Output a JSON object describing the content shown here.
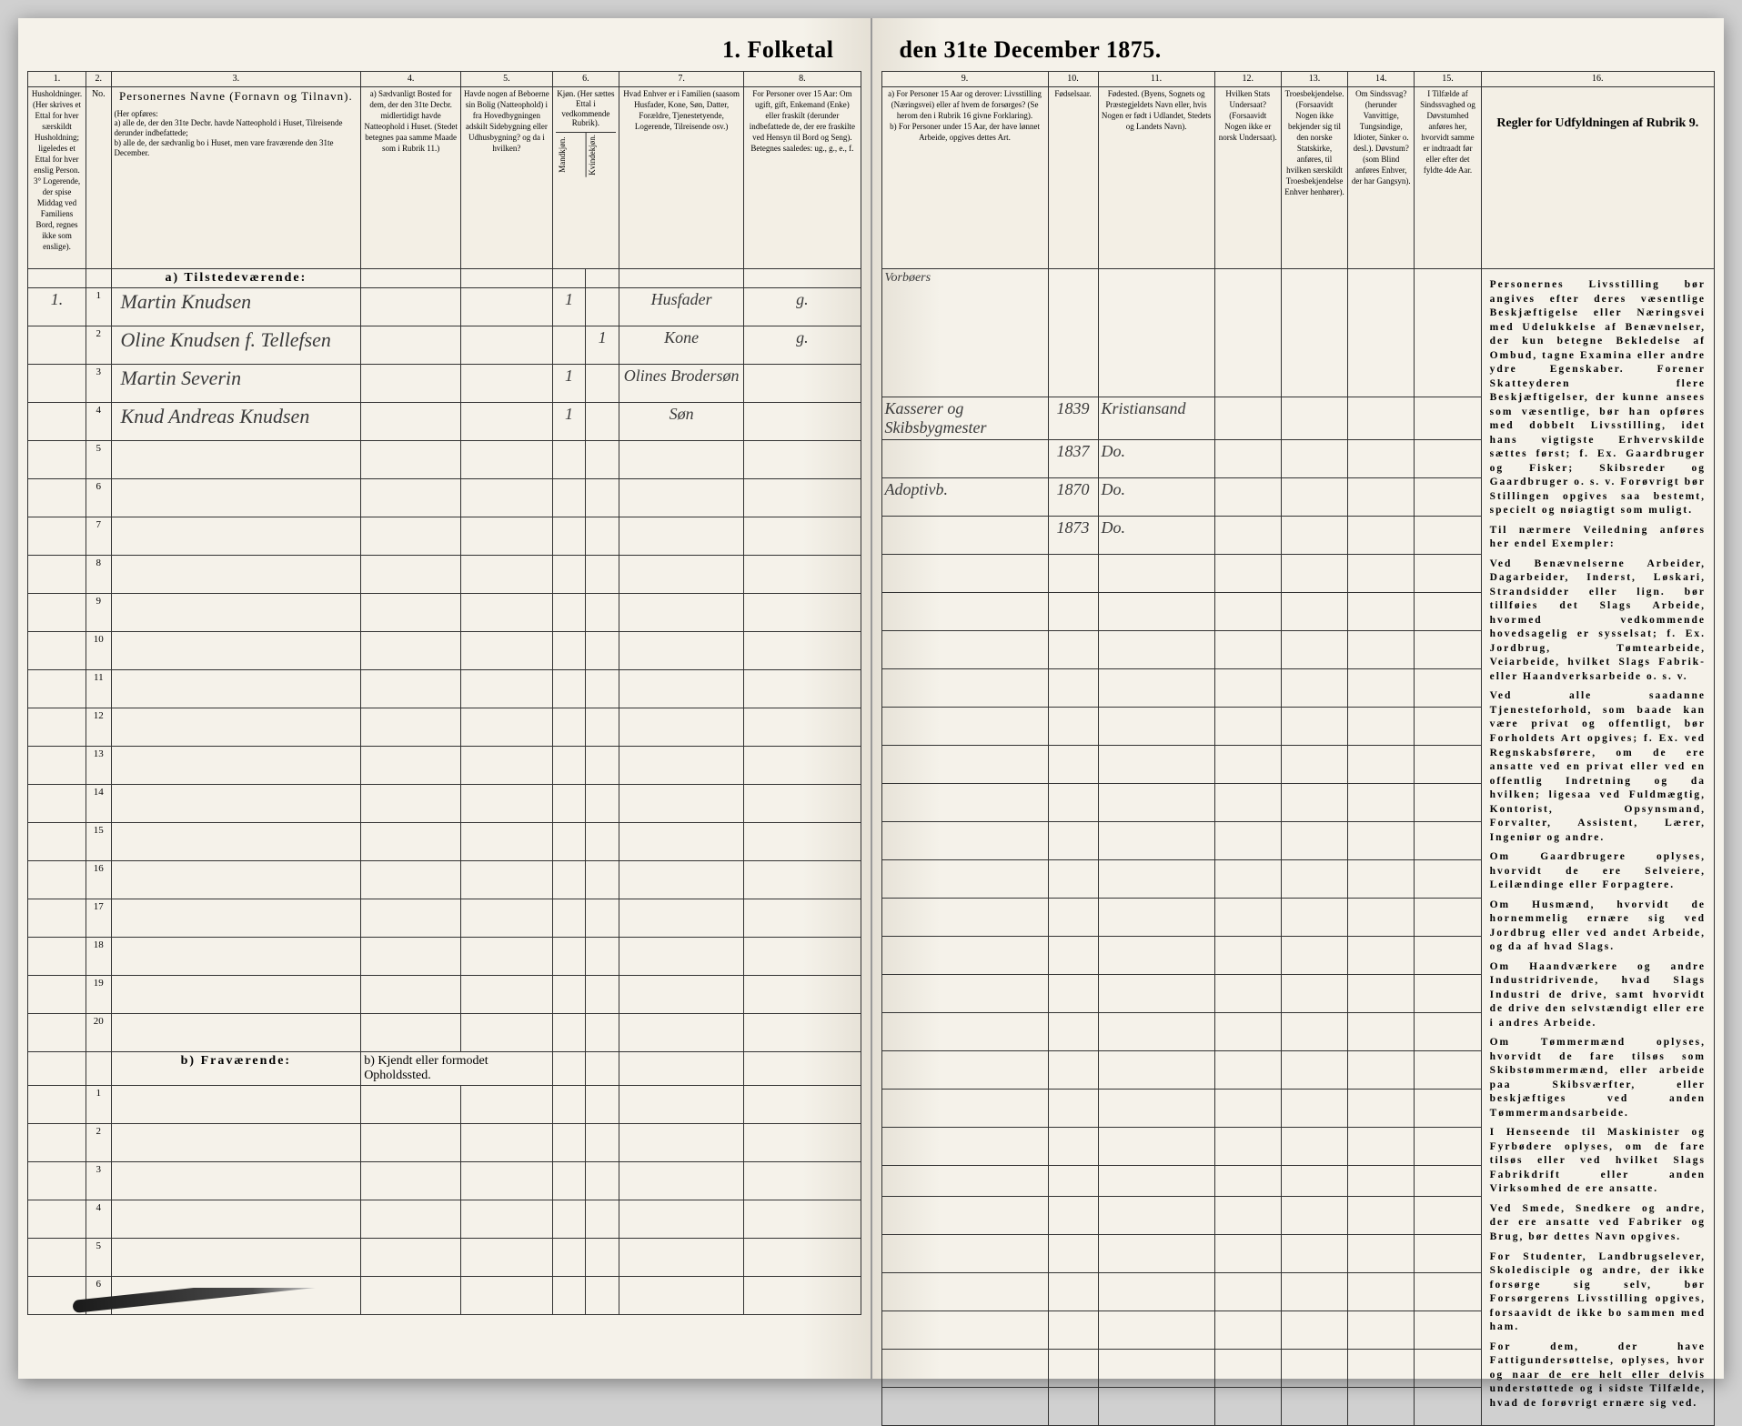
{
  "title_left": "1. Folketal",
  "title_right": "den 31te December 1875.",
  "column_numbers": [
    "1.",
    "2.",
    "3.",
    "4.",
    "5.",
    "6.",
    "7.",
    "8.",
    "9.",
    "10.",
    "11.",
    "12.",
    "13.",
    "14.",
    "15.",
    "16."
  ],
  "headers": {
    "c1": "Husholdninger. (Her skrives et Ettal for hver særskildt Husholdning; ligeledes et Ettal for hver enslig Person.\n3° Logerende, der spise Middag ved Familiens Bord, regnes ikke som enslige).",
    "c2": "No.",
    "c3_title": "Personernes Navne (Fornavn og Tilnavn).",
    "c3_body": "(Her opføres:\na) alle de, der den 31te Decbr. havde Natteophold i Huset, Tilreisende derunder indbefattede;\nb) alle de, der sædvanlig bo i Huset, men vare fraværende den 31te December.",
    "c4": "a) Sædvanligt Bosted for dem, der den 31te Decbr. midlertidigt havde Natteophold i Huset. (Stedet betegnes paa samme Maade som i Rubrik 11.)",
    "c5": "Havde nogen af Beboerne sin Bolig (Natteophold) i fra Hovedbygningen adskilt Sidebygning eller Udhusbygning? og da i hvilken?",
    "c6": "Kjøn. (Her sættes Ettal i vedkommende Rubrik).",
    "c6a": "Mandkjøn.",
    "c6b": "Kvindekjøn.",
    "c7": "Hvad Enhver er i Familien (saasom Husfader, Kone, Søn, Datter, Forældre, Tjenestetyende, Logerende, Tilreisende osv.)",
    "c8": "For Personer over 15 Aar: Om ugift, gift, Enkemand (Enke) eller fraskilt (derunder indbefattede de, der ere fraskilte ved Hensyn til Bord og Seng).\nBetegnes saaledes:\nug., g., e., f.",
    "c9": "a) For Personer 15 Aar og derover: Livsstilling (Næringsvei) eller af hvem de forsørges? (Se herom den i Rubrik 16 givne Forklaring).\nb) For Personer under 15 Aar, der have lønnet Arbeide, opgives dettes Art.",
    "c10": "Fødselsaar.",
    "c11": "Fødested. (Byens, Sognets og Præstegjeldets Navn eller, hvis Nogen er født i Udlandet, Stedets og Landets Navn).",
    "c12": "Hvilken Stats Undersaat? (Forsaavidt Nogen ikke er norsk Undersaat).",
    "c13": "Troesbekjendelse. (Forsaavidt Nogen ikke bekjender sig til den norske Statskirke, anføres, til hvilken særskildt Troesbekjendelse Enhver henhører).",
    "c14": "Om Sindssvag? (herunder Vanvittige, Tungsindige, Idioter, Sinker o. desl.).\nDøvstum? (som Blind anføres Enhver, der har Gangsyn).",
    "c15": "I Tilfælde af Sindssvaghed og Døvstumhed anføres her, hvorvidt samme er indtraadt før eller efter det fyldte 4de Aar.",
    "c16": "Regler for Udfyldningen af Rubrik 9."
  },
  "section_a": "a) Tilstedeværende:",
  "section_b": "b) Fraværende:",
  "section_b_col4": "b) Kjendt eller formodet Opholdssted.",
  "rows_a": [
    {
      "hh": "1.",
      "no": "1",
      "name": "Martin Knudsen",
      "c4": "",
      "c5": "",
      "m": "1",
      "k": "",
      "fam": "Husfader",
      "civ": "g.",
      "occ": "Kasserer og Skibsbygmester",
      "year": "1839",
      "place": "Kristiansand"
    },
    {
      "hh": "",
      "no": "2",
      "name": "Oline Knudsen f. Tellefsen",
      "c4": "",
      "c5": "",
      "m": "",
      "k": "1",
      "fam": "Kone",
      "civ": "g.",
      "occ": "",
      "year": "1837",
      "place": "Do."
    },
    {
      "hh": "",
      "no": "3",
      "name": "Martin Severin",
      "c4": "",
      "c5": "",
      "m": "1",
      "k": "",
      "fam": "Olines Brodersøn",
      "civ": "",
      "occ": "Adoptivb.",
      "year": "1870",
      "place": "Do."
    },
    {
      "hh": "",
      "no": "4",
      "name": "Knud Andreas Knudsen",
      "c4": "",
      "c5": "",
      "m": "1",
      "k": "",
      "fam": "Søn",
      "civ": "",
      "occ": "",
      "year": "1873",
      "place": "Do."
    }
  ],
  "row_nums_a": [
    "1",
    "2",
    "3",
    "4",
    "5",
    "6",
    "7",
    "8",
    "9",
    "10",
    "11",
    "12",
    "13",
    "14",
    "15",
    "16",
    "17",
    "18",
    "19",
    "20"
  ],
  "row_nums_b": [
    "1",
    "2",
    "3",
    "4",
    "5",
    "6"
  ],
  "instructions_title": "",
  "instructions_paras": [
    "Personernes Livsstilling bør angives efter deres væsentlige Beskjæftigelse eller Næringsvei med Udelukkelse af Benævnelser, der kun betegne Bekledelse af Ombud, tagne Examina eller andre ydre Egenskaber. Forener Skatteyderen flere Beskjæftigelser, der kunne ansees som væsentlige, bør han opføres med dobbelt Livsstilling, idet hans vigtigste Erhvervskilde sættes først; f. Ex. Gaardbruger og Fisker; Skibsreder og Gaardbruger o. s. v. Forøvrigt bør Stillingen opgives saa bestemt, specielt og nøiagtigt som muligt.",
    "Til nærmere Veiledning anføres her endel Exempler:",
    "Ved Benævnelserne <b>Arbeider, Dagarbeider, Inderst, Løskari, Strandsidder</b> eller lign. bør tillføies det Slags Arbeide, hvormed vedkommende hovedsagelig er sysselsat; f. Ex. Jordbrug, Tømtearbeide, Veiarbeide, hvilket Slags Fabrik- eller Haandverksarbeide o. s. v.",
    "Ved alle saadanne Tjenesteforhold, som baade kan være privat og offentligt, bør Forholdets Art opgives; f. Ex. ved Regnskabsførere, om de ere ansatte ved en privat eller ved en offentlig Indretning og da hvilken; ligesaa ved Fuldmægtig, Kontorist, Opsynsmand, Forvalter, Assistent, Lærer, Ingeniør og andre.",
    "Om <b>Gaardbrugere</b> oplyses, hvorvidt de ere Selveiere, Leilændinge eller Forpagtere.",
    "Om <b>Husmænd</b>, hvorvidt de hornemmelig ernære sig ved Jordbrug eller ved andet Arbeide, og da af hvad Slags.",
    "Om <b>Haandværkere og andre Industridrivende</b>, hvad Slags Industri de drive, samt hvorvidt de drive den selvstændigt eller ere i andres Arbeide.",
    "Om <b>Tømmermænd</b> oplyses, hvorvidt de fare tilsøs som Skibstømmermænd, eller arbeide paa Skibsværfter, eller beskjæftiges ved anden Tømmermandsarbeide.",
    "I Henseende til <b>Maskinister og Fyrbødere</b> oplyses, om de fare tilsøs eller ved hvilket Slags Fabrikdrift eller anden Virksomhed de ere ansatte.",
    "Ved <b>Smede, Snedkere og andre</b>, der ere ansatte ved Fabriker og Brug, bør dettes Navn opgives.",
    "For <b>Studenter, Landbrugselever, Skoledisciple og andre</b>, der ikke forsørge sig selv, bør <b>Forsørgerens Livsstilling</b> opgives, forsaavidt de ikke bo sammen med ham.",
    "For dem, der have <b>Fattigundersøttelse</b>, oplyses, hvor og naar de ere helt eller delvis understøttede og i sidste Tilfælde, hvad de forøvrigt ernære sig ved."
  ],
  "colors": {
    "paper": "#f5f2ea",
    "ink": "#2b2b2b",
    "line": "#333333",
    "background": "#d0d0d0"
  }
}
